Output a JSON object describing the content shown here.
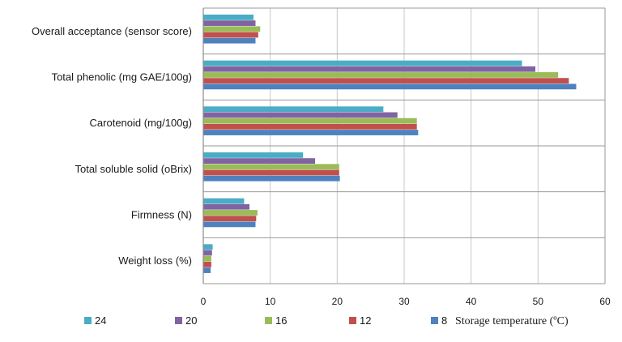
{
  "chart_data": {
    "type": "bar",
    "orientation": "horizontal",
    "categories": [
      "Overall acceptance (sensor score)",
      "Total phenolic (mg GAE/100g)",
      "Carotenoid (mg/100g)",
      "Total soluble solid  (oBrix)",
      "Firmness (N)",
      "Weight loss (%)"
    ],
    "series": [
      {
        "name": "24",
        "color": "#4BACC6",
        "values": [
          7.5,
          47.6,
          26.9,
          14.9,
          6.1,
          1.4
        ]
      },
      {
        "name": "20",
        "color": "#8064A2",
        "values": [
          7.8,
          49.6,
          29.0,
          16.7,
          6.9,
          1.3
        ]
      },
      {
        "name": "16",
        "color": "#9BBB59",
        "values": [
          8.5,
          53.0,
          31.9,
          20.3,
          8.1,
          1.2
        ]
      },
      {
        "name": "12",
        "color": "#C0504D",
        "values": [
          8.2,
          54.6,
          31.9,
          20.3,
          7.9,
          1.2
        ]
      },
      {
        "name": "8",
        "color": "#4F81BD",
        "values": [
          7.8,
          55.7,
          32.1,
          20.4,
          7.8,
          1.1
        ]
      }
    ],
    "xticks": [
      "0",
      "10",
      "20",
      "30",
      "40",
      "50",
      "60"
    ],
    "xlim": [
      0,
      60
    ],
    "legend_title": "Storage temperature (ºC)",
    "legend_position": "bottom",
    "grid": true
  }
}
